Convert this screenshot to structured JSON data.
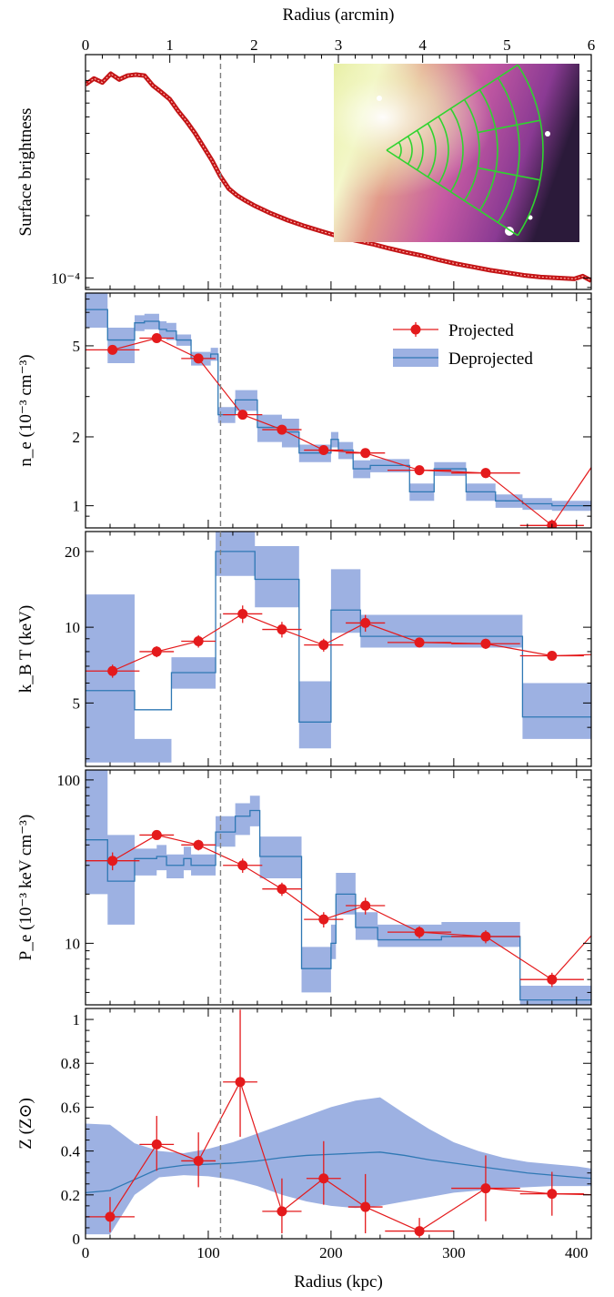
{
  "top_axis": {
    "label": "Radius (arcmin)",
    "range": [
      0,
      6
    ],
    "ticks": [
      0,
      1,
      2,
      3,
      4,
      5,
      6
    ],
    "tick_labels": [
      "0",
      "1",
      "2",
      "3",
      "4",
      "5",
      "6"
    ]
  },
  "bottom_axis": {
    "label": "Radius (kpc)",
    "range": [
      0,
      412
    ],
    "ticks": [
      0,
      100,
      200,
      300,
      400
    ],
    "tick_labels": [
      "0",
      "100",
      "200",
      "300",
      "400"
    ]
  },
  "vline_kpc": 110,
  "colors": {
    "projected": "#e41a1c",
    "deprojected_band": "#9db1e2",
    "deprojected_line": "#2f78b4",
    "vline": "#808080"
  },
  "legend": {
    "projected": "Projected",
    "deprojected": "Deprojected"
  },
  "chart_data": [
    {
      "type": "line",
      "panel": "surface-brightness",
      "ylabel": "Surface brightness",
      "yscale": "log",
      "ylim": [
        8.8e-05,
        0.0012
      ],
      "yticks": [
        0.0001
      ],
      "ytick_labels": [
        "10⁻⁴"
      ],
      "x_units": "arcmin",
      "x": [
        0,
        0.1,
        0.2,
        0.3,
        0.4,
        0.5,
        0.6,
        0.7,
        0.8,
        0.9,
        1.0,
        1.1,
        1.2,
        1.3,
        1.4,
        1.5,
        1.6,
        1.7,
        1.8,
        1.9,
        2.0,
        2.2,
        2.4,
        2.6,
        2.8,
        3.0,
        3.2,
        3.4,
        3.6,
        3.8,
        4.0,
        4.2,
        4.4,
        4.6,
        4.8,
        5.0,
        5.2,
        5.4,
        5.6,
        5.8,
        5.9,
        6.0
      ],
      "y": [
        0.00086,
        0.00092,
        0.00088,
        0.00097,
        0.00091,
        0.00095,
        0.00096,
        0.00095,
        0.00085,
        0.00079,
        0.00073,
        0.00064,
        0.00057,
        0.0005,
        0.00043,
        0.00037,
        0.00031,
        0.00027,
        0.00025,
        0.000236,
        0.000224,
        0.000205,
        0.00019,
        0.000178,
        0.000168,
        0.000159,
        0.000152,
        0.000146,
        0.000139,
        0.000133,
        0.000128,
        0.000122,
        0.000117,
        0.000113,
        0.000109,
        0.000106,
        0.000103,
        0.000101,
        0.0001,
        9.9e-05,
        0.000102,
        9.7e-05
      ],
      "inset_image": "Chandra X-ray image with green annular-sector extraction regions"
    },
    {
      "type": "line",
      "panel": "density",
      "ylabel": "n_e (10⁻³ cm⁻³)",
      "yscale": "log",
      "ylim": [
        0.8,
        8.5
      ],
      "yticks": [
        1,
        2,
        5
      ],
      "ytick_labels": [
        "1",
        "2",
        "5"
      ],
      "projected": {
        "x": [
          22,
          58,
          92,
          128,
          160,
          194,
          228,
          272,
          326,
          380,
          420
        ],
        "xerr": [
          22,
          14,
          14,
          16,
          16,
          16,
          16,
          26,
          28,
          26,
          8
        ],
        "y": [
          4.8,
          5.4,
          4.4,
          2.5,
          2.15,
          1.75,
          1.7,
          1.43,
          1.39,
          0.82,
          1.7
        ],
        "yerr": [
          0.2,
          0.2,
          0.2,
          0.1,
          0.1,
          0.08,
          0.08,
          0.07,
          0.07,
          0.05,
          0.3
        ]
      },
      "deprojected": {
        "x": [
          0,
          18,
          18,
          40,
          40,
          48,
          48,
          60,
          60,
          66,
          66,
          74,
          74,
          80,
          80,
          86,
          86,
          102,
          102,
          108,
          108,
          122,
          122,
          140,
          140,
          160,
          160,
          174,
          174,
          200,
          200,
          206,
          206,
          218,
          218,
          232,
          232,
          264,
          264,
          284,
          284,
          310,
          310,
          334,
          334,
          356,
          356,
          380,
          380,
          412
        ],
        "y": [
          7.2,
          7.2,
          5.3,
          5.3,
          6.3,
          6.3,
          6.4,
          6.4,
          5.9,
          5.9,
          5.8,
          5.8,
          5.3,
          5.3,
          5.3,
          5.3,
          4.4,
          4.4,
          4.6,
          4.6,
          2.5,
          2.5,
          2.9,
          2.9,
          2.2,
          2.2,
          2.1,
          2.1,
          1.7,
          1.7,
          1.95,
          1.95,
          1.75,
          1.75,
          1.45,
          1.45,
          1.5,
          1.5,
          1.15,
          1.15,
          1.45,
          1.45,
          1.15,
          1.15,
          1.05,
          1.05,
          1.02,
          1.02,
          1.0,
          1.0
        ],
        "lo": [
          6.0,
          6.0,
          4.2,
          4.2,
          5.8,
          5.8,
          5.9,
          5.9,
          5.4,
          5.4,
          5.3,
          5.3,
          5.0,
          5.0,
          5.0,
          5.0,
          4.1,
          4.1,
          4.3,
          4.3,
          2.3,
          2.3,
          2.6,
          2.6,
          1.9,
          1.9,
          1.8,
          1.8,
          1.55,
          1.55,
          1.8,
          1.8,
          1.6,
          1.6,
          1.32,
          1.32,
          1.4,
          1.4,
          1.05,
          1.05,
          1.35,
          1.35,
          1.05,
          1.05,
          0.98,
          0.98,
          0.96,
          0.96,
          0.95,
          0.95
        ],
        "hi": [
          8.5,
          8.5,
          6.0,
          6.0,
          6.8,
          6.8,
          6.9,
          6.9,
          6.4,
          6.4,
          6.3,
          6.3,
          5.6,
          5.6,
          5.6,
          5.6,
          4.7,
          4.7,
          4.9,
          4.9,
          2.7,
          2.7,
          3.2,
          3.2,
          2.5,
          2.5,
          2.4,
          2.4,
          1.85,
          1.85,
          2.1,
          2.1,
          1.9,
          1.9,
          1.58,
          1.58,
          1.6,
          1.6,
          1.25,
          1.25,
          1.55,
          1.55,
          1.25,
          1.25,
          1.12,
          1.12,
          1.08,
          1.08,
          1.05,
          1.05
        ]
      }
    },
    {
      "type": "line",
      "panel": "temperature",
      "ylabel": "k_B T (keV)",
      "yscale": "log",
      "ylim": [
        2.8,
        24
      ],
      "yticks": [
        5,
        10,
        20
      ],
      "ytick_labels": [
        "5",
        "10",
        "20"
      ],
      "projected": {
        "x": [
          22,
          58,
          92,
          128,
          160,
          194,
          228,
          272,
          326,
          380,
          420
        ],
        "xerr": [
          22,
          14,
          14,
          16,
          16,
          16,
          16,
          26,
          28,
          26,
          8
        ],
        "y": [
          6.7,
          8.0,
          8.8,
          11.3,
          9.8,
          8.5,
          10.4,
          8.7,
          8.6,
          7.7,
          7.8
        ],
        "yerr": [
          0.4,
          0.4,
          0.5,
          0.9,
          0.7,
          0.5,
          0.8,
          0.4,
          0.4,
          0.3,
          0.3
        ]
      },
      "deprojected": {
        "x": [
          0,
          40,
          40,
          70,
          70,
          106,
          106,
          138,
          138,
          174,
          174,
          200,
          200,
          224,
          224,
          248,
          248,
          356,
          356,
          412
        ],
        "y": [
          5.6,
          5.6,
          4.7,
          4.7,
          6.6,
          6.6,
          20,
          20,
          15.5,
          15.5,
          4.2,
          4.2,
          11.7,
          11.7,
          9.2,
          9.2,
          9.2,
          9.2,
          4.4,
          4.4
        ],
        "lo": [
          2.9,
          2.9,
          2.9,
          2.9,
          5.7,
          5.7,
          16,
          16,
          12,
          12,
          3.3,
          3.3,
          9.5,
          9.5,
          8.3,
          8.3,
          8.3,
          8.3,
          3.6,
          3.6
        ],
        "hi": [
          13.5,
          13.5,
          3.6,
          3.6,
          7.6,
          7.6,
          24,
          24,
          21,
          21,
          6.1,
          6.1,
          17,
          17,
          11.2,
          11.2,
          11.2,
          11.2,
          6.0,
          6.0
        ]
      }
    },
    {
      "type": "line",
      "panel": "pressure",
      "ylabel": "P_e (10⁻³ keV cm⁻³)",
      "yscale": "log",
      "ylim": [
        4.2,
        115
      ],
      "yticks": [
        10,
        100
      ],
      "ytick_labels": [
        "10",
        "100"
      ],
      "projected": {
        "x": [
          22,
          58,
          92,
          128,
          160,
          194,
          228,
          272,
          326,
          380,
          420
        ],
        "xerr": [
          22,
          14,
          14,
          16,
          16,
          16,
          16,
          26,
          28,
          26,
          8
        ],
        "y": [
          32,
          46,
          40,
          30,
          21.5,
          14,
          17,
          11.7,
          11,
          6.0,
          13
        ],
        "yerr": [
          4,
          3,
          3,
          3,
          2,
          1.5,
          2,
          1,
          1,
          0.6,
          2
        ]
      },
      "deprojected": {
        "x": [
          0,
          18,
          18,
          40,
          40,
          58,
          58,
          66,
          66,
          80,
          80,
          86,
          86,
          106,
          106,
          122,
          122,
          134,
          134,
          142,
          142,
          176,
          176,
          200,
          200,
          204,
          204,
          220,
          220,
          238,
          238,
          290,
          290,
          354,
          354,
          380,
          380,
          412
        ],
        "y": [
          43,
          43,
          24,
          24,
          33,
          33,
          34,
          34,
          30,
          30,
          33,
          33,
          30,
          30,
          48,
          48,
          60,
          60,
          65,
          65,
          34,
          34,
          7.0,
          7.0,
          10,
          10,
          20,
          20,
          12.5,
          12.5,
          10.5,
          10.5,
          11.0,
          11.0,
          4.5,
          4.5,
          4.5,
          4.5
        ],
        "lo": [
          20,
          20,
          13,
          13,
          26,
          26,
          28,
          28,
          25,
          25,
          28,
          28,
          26,
          26,
          39,
          39,
          46,
          46,
          52,
          52,
          25,
          25,
          5.0,
          5.0,
          8.0,
          8.0,
          15,
          15,
          10.5,
          10.5,
          9.5,
          9.5,
          9.5,
          9.5,
          4.2,
          4.2,
          4.2,
          4.2
        ],
        "hi": [
          115,
          115,
          46,
          46,
          38,
          38,
          40,
          40,
          35,
          35,
          39,
          39,
          35,
          35,
          60,
          60,
          72,
          72,
          80,
          80,
          45,
          45,
          9.5,
          9.5,
          13,
          13,
          27,
          27,
          15.5,
          15.5,
          13,
          13,
          13.5,
          13.5,
          5.5,
          5.5,
          5.5,
          5.5
        ]
      }
    },
    {
      "type": "line",
      "panel": "metallicity",
      "ylabel": "Z (Z⊙)",
      "yscale": "linear",
      "ylim": [
        0,
        1.05
      ],
      "yticks": [
        0,
        0.2,
        0.4,
        0.6,
        0.8,
        1
      ],
      "ytick_labels": [
        "0",
        "0.2",
        "0.4",
        "0.6",
        "0.8",
        "1"
      ],
      "projected": {
        "x": [
          20,
          58,
          92,
          126,
          160,
          194,
          228,
          272,
          326,
          380,
          420
        ],
        "xerr": [
          20,
          14,
          14,
          14,
          16,
          14,
          14,
          28,
          28,
          26,
          8
        ],
        "yerr_lo": [
          0.07,
          0.12,
          0.12,
          0.25,
          0.1,
          0.12,
          0.12,
          0.03,
          0.15,
          0.1,
          0.1
        ],
        "yerr_hi": [
          0.09,
          0.13,
          0.13,
          0.33,
          0.15,
          0.17,
          0.15,
          0.06,
          0.15,
          0.1,
          0.1
        ],
        "y": [
          0.1,
          0.43,
          0.355,
          0.715,
          0.125,
          0.275,
          0.145,
          0.035,
          0.23,
          0.205,
          0.2
        ]
      },
      "deprojected": {
        "x": [
          0,
          20,
          40,
          60,
          80,
          100,
          120,
          140,
          160,
          180,
          200,
          220,
          240,
          260,
          280,
          300,
          320,
          340,
          360,
          380,
          400,
          412
        ],
        "y": [
          0.21,
          0.22,
          0.27,
          0.32,
          0.335,
          0.34,
          0.345,
          0.355,
          0.37,
          0.38,
          0.385,
          0.39,
          0.395,
          0.38,
          0.36,
          0.345,
          0.33,
          0.315,
          0.3,
          0.29,
          0.28,
          0.275
        ],
        "lo": [
          0.02,
          0.02,
          0.2,
          0.28,
          0.29,
          0.285,
          0.27,
          0.24,
          0.2,
          0.17,
          0.15,
          0.14,
          0.15,
          0.17,
          0.19,
          0.21,
          0.22,
          0.23,
          0.235,
          0.24,
          0.24,
          0.24
        ],
        "hi": [
          0.525,
          0.52,
          0.435,
          0.4,
          0.39,
          0.41,
          0.44,
          0.48,
          0.52,
          0.56,
          0.6,
          0.63,
          0.645,
          0.57,
          0.5,
          0.44,
          0.4,
          0.37,
          0.35,
          0.34,
          0.33,
          0.32
        ]
      }
    }
  ]
}
